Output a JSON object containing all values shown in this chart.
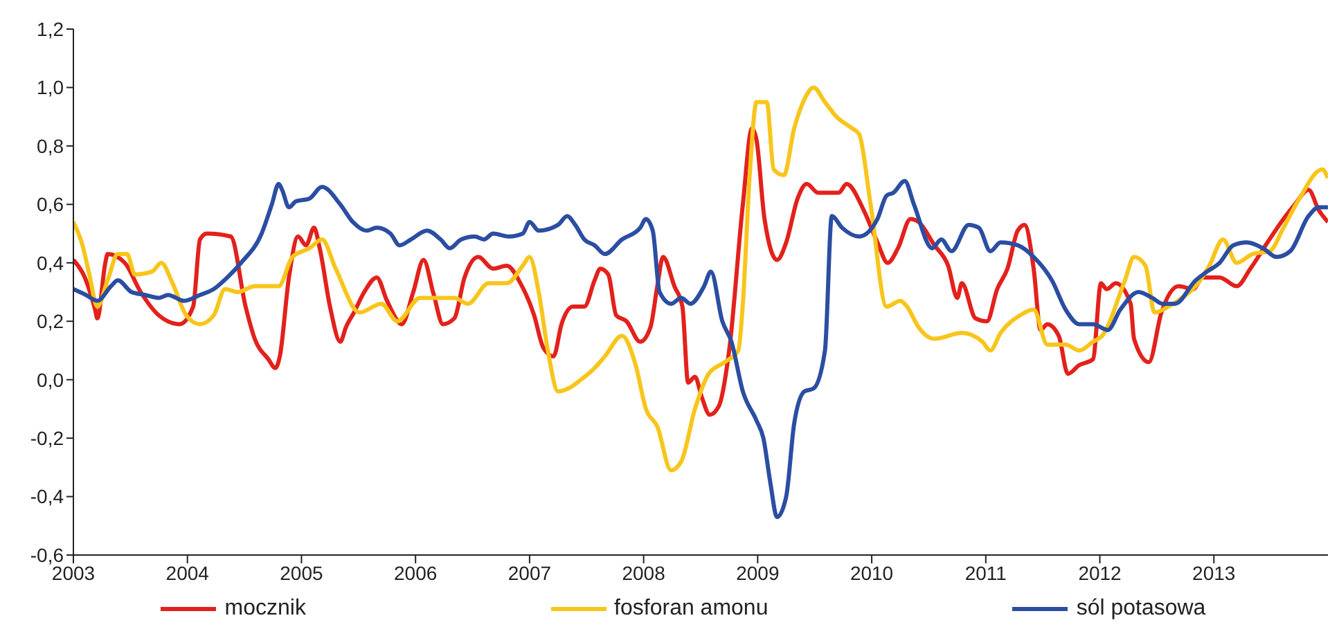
{
  "chart_data": {
    "type": "line",
    "xlim": [
      2003,
      2014
    ],
    "xticks": [
      2003,
      2004,
      2005,
      2006,
      2007,
      2008,
      2009,
      2010,
      2011,
      2012,
      2013
    ],
    "ylim": [
      -0.6,
      1.2
    ],
    "yticks": [
      {
        "value": -0.6,
        "label": "-0,6"
      },
      {
        "value": -0.4,
        "label": "-0,4"
      },
      {
        "value": -0.2,
        "label": "-0,2"
      },
      {
        "value": 0,
        "label": "0,0"
      },
      {
        "value": 0.2,
        "label": "0,2"
      },
      {
        "value": 0.4,
        "label": "0,4"
      },
      {
        "value": 0.6,
        "label": "0,6"
      },
      {
        "value": 0.8,
        "label": "0,8"
      },
      {
        "value": 1.0,
        "label": "1,0"
      },
      {
        "value": 1.2,
        "label": "1,2"
      }
    ],
    "grid": false,
    "legend": "bottom",
    "marker": "none",
    "line_style": "solid",
    "series": [
      {
        "name": "mocznik",
        "color": "#e3211c",
        "x": [
          2003.0,
          2003.1,
          2003.19,
          2003.21,
          2003.28,
          2003.3,
          2003.45,
          2003.59,
          2003.75,
          2003.93,
          2004.05,
          2004.11,
          2004.17,
          2004.38,
          2004.51,
          2004.59,
          2004.71,
          2004.77,
          2004.81,
          2004.89,
          2004.97,
          2005.04,
          2005.11,
          2005.16,
          2005.25,
          2005.34,
          2005.39,
          2005.46,
          2005.55,
          2005.66,
          2005.75,
          2005.88,
          2005.98,
          2006.07,
          2006.16,
          2006.24,
          2006.34,
          2006.43,
          2006.55,
          2006.68,
          2006.8,
          2006.92,
          2007.04,
          2007.12,
          2007.21,
          2007.28,
          2007.38,
          2007.48,
          2007.57,
          2007.62,
          2007.69,
          2007.76,
          2007.85,
          2007.97,
          2008.06,
          2008.12,
          2008.17,
          2008.27,
          2008.34,
          2008.39,
          2008.45,
          2008.51,
          2008.58,
          2008.66,
          2008.75,
          2008.87,
          2008.95,
          2008.99,
          2009.06,
          2009.17,
          2009.25,
          2009.35,
          2009.43,
          2009.53,
          2009.71,
          2009.78,
          2009.93,
          2010.05,
          2010.14,
          2010.23,
          2010.34,
          2010.41,
          2010.55,
          2010.67,
          2010.75,
          2010.79,
          2010.91,
          2011.01,
          2011.1,
          2011.19,
          2011.28,
          2011.34,
          2011.42,
          2011.48,
          2011.54,
          2011.64,
          2011.72,
          2011.82,
          2011.94,
          2012.01,
          2012.06,
          2012.14,
          2012.27,
          2012.3,
          2012.43,
          2012.54,
          2012.69,
          2012.82,
          2012.9,
          2013.05,
          2013.2,
          2013.32,
          2013.47,
          2013.61,
          2013.71,
          2013.83,
          2013.92,
          2014.0
        ],
        "values": [
          0.41,
          0.35,
          0.24,
          0.21,
          0.4,
          0.43,
          0.4,
          0.3,
          0.22,
          0.19,
          0.25,
          0.48,
          0.5,
          0.49,
          0.25,
          0.14,
          0.07,
          0.04,
          0.08,
          0.35,
          0.49,
          0.46,
          0.52,
          0.45,
          0.25,
          0.13,
          0.18,
          0.23,
          0.3,
          0.35,
          0.27,
          0.19,
          0.3,
          0.41,
          0.29,
          0.19,
          0.21,
          0.35,
          0.42,
          0.38,
          0.39,
          0.33,
          0.22,
          0.11,
          0.08,
          0.19,
          0.25,
          0.25,
          0.34,
          0.38,
          0.36,
          0.22,
          0.2,
          0.13,
          0.18,
          0.32,
          0.42,
          0.32,
          0.25,
          -0.01,
          0.01,
          -0.06,
          -0.12,
          -0.09,
          0.1,
          0.6,
          0.86,
          0.82,
          0.55,
          0.41,
          0.47,
          0.62,
          0.67,
          0.64,
          0.64,
          0.67,
          0.58,
          0.47,
          0.4,
          0.45,
          0.55,
          0.54,
          0.46,
          0.39,
          0.28,
          0.33,
          0.21,
          0.2,
          0.31,
          0.38,
          0.51,
          0.53,
          0.38,
          0.17,
          0.19,
          0.15,
          0.02,
          0.05,
          0.07,
          0.33,
          0.31,
          0.33,
          0.26,
          0.14,
          0.06,
          0.23,
          0.32,
          0.31,
          0.35,
          0.35,
          0.32,
          0.38,
          0.47,
          0.55,
          0.6,
          0.65,
          0.58,
          0.54
        ]
      },
      {
        "name": "fosforan amonu",
        "color": "#f8c51b",
        "x": [
          2003.0,
          2003.08,
          2003.14,
          2003.21,
          2003.3,
          2003.39,
          2003.47,
          2003.54,
          2003.69,
          2003.77,
          2003.87,
          2003.99,
          2004.11,
          2004.23,
          2004.33,
          2004.44,
          2004.59,
          2004.8,
          2004.92,
          2005.07,
          2005.18,
          2005.3,
          2005.51,
          2005.7,
          2005.84,
          2006.04,
          2006.34,
          2006.46,
          2006.64,
          2006.8,
          2006.94,
          2007.0,
          2007.08,
          2007.16,
          2007.25,
          2007.34,
          2007.45,
          2007.57,
          2007.66,
          2007.81,
          2007.93,
          2008.02,
          2008.12,
          2008.24,
          2008.33,
          2008.45,
          2008.57,
          2008.71,
          2008.83,
          2008.87,
          2008.93,
          2008.99,
          2009.08,
          2009.14,
          2009.23,
          2009.32,
          2009.41,
          2009.49,
          2009.59,
          2009.69,
          2009.83,
          2009.89,
          2009.99,
          2010.13,
          2010.25,
          2010.31,
          2010.41,
          2010.55,
          2010.79,
          2010.97,
          2011.04,
          2011.13,
          2011.3,
          2011.42,
          2011.54,
          2011.7,
          2011.82,
          2011.94,
          2012.02,
          2012.22,
          2012.3,
          2012.4,
          2012.48,
          2012.6,
          2012.72,
          2012.84,
          2012.96,
          2013.08,
          2013.2,
          2013.34,
          2013.49,
          2013.61,
          2013.75,
          2013.95,
          2014.0
        ],
        "values": [
          0.54,
          0.46,
          0.36,
          0.25,
          0.34,
          0.43,
          0.43,
          0.36,
          0.37,
          0.4,
          0.33,
          0.22,
          0.19,
          0.22,
          0.31,
          0.3,
          0.32,
          0.32,
          0.42,
          0.45,
          0.48,
          0.38,
          0.23,
          0.26,
          0.2,
          0.28,
          0.28,
          0.26,
          0.33,
          0.33,
          0.39,
          0.42,
          0.3,
          0.1,
          -0.04,
          -0.03,
          0.0,
          0.04,
          0.08,
          0.15,
          0.05,
          -0.1,
          -0.16,
          -0.31,
          -0.28,
          -0.1,
          0.02,
          0.06,
          0.1,
          0.26,
          0.7,
          0.95,
          0.95,
          0.72,
          0.7,
          0.86,
          0.96,
          1.0,
          0.95,
          0.9,
          0.86,
          0.84,
          0.6,
          0.25,
          0.27,
          0.25,
          0.18,
          0.14,
          0.16,
          0.13,
          0.1,
          0.16,
          0.22,
          0.24,
          0.12,
          0.12,
          0.1,
          0.13,
          0.15,
          0.34,
          0.42,
          0.39,
          0.23,
          0.25,
          0.28,
          0.32,
          0.39,
          0.48,
          0.4,
          0.43,
          0.44,
          0.52,
          0.62,
          0.72,
          0.69
        ]
      },
      {
        "name": "sól potasowa",
        "color": "#2b4ea2",
        "x": [
          2003.0,
          2003.11,
          2003.21,
          2003.33,
          2003.39,
          2003.51,
          2003.63,
          2003.75,
          2003.83,
          2003.97,
          2004.11,
          2004.23,
          2004.35,
          2004.47,
          2004.65,
          2004.74,
          2004.8,
          2004.83,
          2004.89,
          2004.95,
          2005.07,
          2005.18,
          2005.34,
          2005.45,
          2005.57,
          2005.66,
          2005.78,
          2005.86,
          2005.96,
          2006.1,
          2006.22,
          2006.3,
          2006.4,
          2006.52,
          2006.6,
          2006.68,
          2006.82,
          2006.94,
          2007.0,
          2007.08,
          2007.25,
          2007.33,
          2007.4,
          2007.48,
          2007.57,
          2007.66,
          2007.81,
          2007.97,
          2008.02,
          2008.08,
          2008.14,
          2008.24,
          2008.33,
          2008.41,
          2008.53,
          2008.59,
          2008.69,
          2008.77,
          2008.87,
          2008.99,
          2009.05,
          2009.11,
          2009.17,
          2009.25,
          2009.32,
          2009.41,
          2009.49,
          2009.59,
          2009.65,
          2009.74,
          2009.89,
          2010.05,
          2010.13,
          2010.19,
          2010.29,
          2010.37,
          2010.53,
          2010.61,
          2010.7,
          2010.85,
          2010.94,
          2011.04,
          2011.13,
          2011.28,
          2011.42,
          2011.58,
          2011.7,
          2011.82,
          2011.94,
          2012.07,
          2012.18,
          2012.34,
          2012.46,
          2012.55,
          2012.66,
          2012.84,
          2012.94,
          2013.05,
          2013.17,
          2013.29,
          2013.43,
          2013.55,
          2013.67,
          2013.83,
          2013.92,
          2014.0
        ],
        "values": [
          0.31,
          0.29,
          0.27,
          0.32,
          0.34,
          0.3,
          0.29,
          0.28,
          0.29,
          0.27,
          0.29,
          0.31,
          0.35,
          0.4,
          0.5,
          0.6,
          0.67,
          0.65,
          0.59,
          0.61,
          0.62,
          0.66,
          0.6,
          0.54,
          0.51,
          0.52,
          0.5,
          0.46,
          0.48,
          0.51,
          0.48,
          0.45,
          0.48,
          0.49,
          0.48,
          0.5,
          0.49,
          0.5,
          0.54,
          0.51,
          0.53,
          0.56,
          0.53,
          0.48,
          0.46,
          0.43,
          0.48,
          0.52,
          0.55,
          0.51,
          0.3,
          0.26,
          0.28,
          0.26,
          0.32,
          0.37,
          0.2,
          0.13,
          -0.04,
          -0.14,
          -0.2,
          -0.35,
          -0.47,
          -0.4,
          -0.15,
          -0.04,
          -0.03,
          0.1,
          0.56,
          0.52,
          0.49,
          0.55,
          0.63,
          0.64,
          0.68,
          0.6,
          0.45,
          0.48,
          0.44,
          0.53,
          0.52,
          0.44,
          0.47,
          0.46,
          0.42,
          0.34,
          0.24,
          0.19,
          0.19,
          0.17,
          0.24,
          0.3,
          0.28,
          0.26,
          0.26,
          0.34,
          0.37,
          0.4,
          0.46,
          0.47,
          0.45,
          0.42,
          0.44,
          0.56,
          0.59,
          0.59
        ]
      }
    ]
  }
}
